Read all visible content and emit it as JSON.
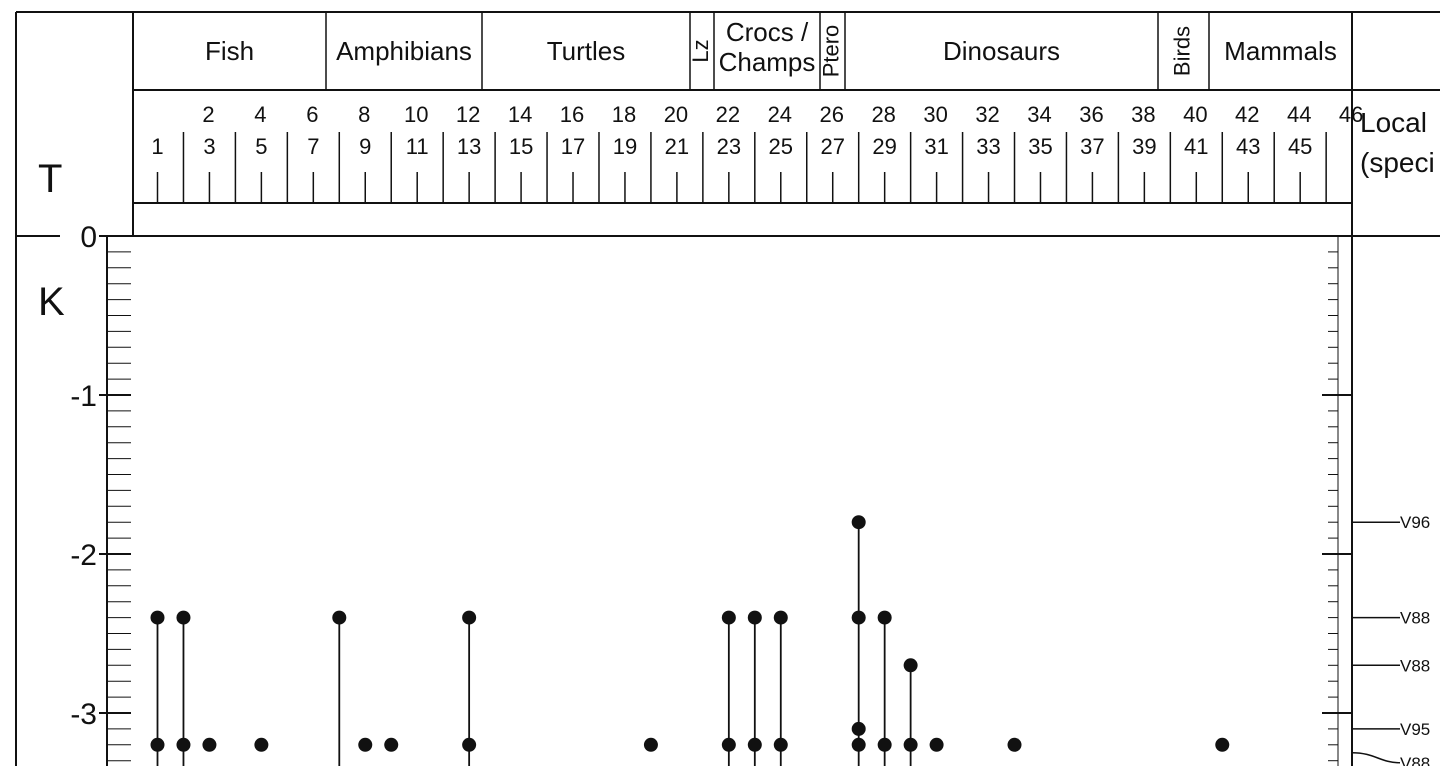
{
  "chart_data": {
    "type": "scatter",
    "boundary_labels": {
      "above": "T",
      "below": "K"
    },
    "taxon_groups": [
      {
        "name": "Fish",
        "first": 1,
        "last": 7
      },
      {
        "name": "Amphibians",
        "first": 8,
        "last": 13
      },
      {
        "name": "Turtles",
        "first": 14,
        "last": 21
      },
      {
        "name": "Lz",
        "first": 22,
        "last": 22,
        "vertical": true
      },
      {
        "name": "Crocs /\nChamps",
        "first": 23,
        "last": 26
      },
      {
        "name": "Ptero",
        "first": 27,
        "last": 27,
        "vertical": true
      },
      {
        "name": "Dinosaurs",
        "first": 28,
        "last": 39
      },
      {
        "name": "Birds",
        "first": 40,
        "last": 40,
        "vertical": true
      },
      {
        "name": "Mammals",
        "first": 41,
        "last": 46
      }
    ],
    "x_ticks_even": [
      2,
      4,
      6,
      8,
      10,
      12,
      14,
      16,
      18,
      20,
      22,
      24,
      26,
      28,
      30,
      32,
      34,
      36,
      38,
      40,
      42,
      44,
      46
    ],
    "x_ticks_odd": [
      1,
      3,
      5,
      7,
      9,
      11,
      13,
      15,
      17,
      19,
      21,
      23,
      25,
      27,
      29,
      31,
      33,
      35,
      37,
      39,
      41,
      43,
      45
    ],
    "y_ticks": [
      0,
      -1,
      -2,
      -3
    ],
    "ylim": [
      -3.35,
      0
    ],
    "side_header": "Local\n(speci",
    "localities": [
      {
        "label": "V96",
        "y": -1.8
      },
      {
        "label": "V88",
        "y": -2.4
      },
      {
        "label": "V88",
        "y": -2.7
      },
      {
        "label": "V95",
        "y": -3.1
      },
      {
        "label": "V88",
        "y": -3.25
      }
    ],
    "ranges": [
      {
        "taxon": 1,
        "top": -2.4,
        "bottom": -3.35
      },
      {
        "taxon": 2,
        "top": -2.4,
        "bottom": -3.35
      },
      {
        "taxon": 8,
        "top": -2.4,
        "bottom": -3.35
      },
      {
        "taxon": 13,
        "top": -2.4,
        "bottom": -3.35
      },
      {
        "taxon": 23,
        "top": -2.4,
        "bottom": -3.35
      },
      {
        "taxon": 24,
        "top": -2.4,
        "bottom": -3.35
      },
      {
        "taxon": 25,
        "top": -2.4,
        "bottom": -3.35
      },
      {
        "taxon": 28,
        "top": -1.8,
        "bottom": -3.35
      },
      {
        "taxon": 29,
        "top": -2.4,
        "bottom": -3.35
      },
      {
        "taxon": 30,
        "top": -2.7,
        "bottom": -3.35
      }
    ],
    "points": [
      {
        "taxon": 1,
        "y": -2.4
      },
      {
        "taxon": 1,
        "y": -3.2
      },
      {
        "taxon": 2,
        "y": -2.4
      },
      {
        "taxon": 2,
        "y": -3.2
      },
      {
        "taxon": 3,
        "y": -3.2
      },
      {
        "taxon": 5,
        "y": -3.2
      },
      {
        "taxon": 8,
        "y": -2.4
      },
      {
        "taxon": 9,
        "y": -3.2
      },
      {
        "taxon": 10,
        "y": -3.2
      },
      {
        "taxon": 13,
        "y": -2.4
      },
      {
        "taxon": 13,
        "y": -3.2
      },
      {
        "taxon": 20,
        "y": -3.2
      },
      {
        "taxon": 23,
        "y": -2.4
      },
      {
        "taxon": 23,
        "y": -3.2
      },
      {
        "taxon": 24,
        "y": -2.4
      },
      {
        "taxon": 24,
        "y": -3.2
      },
      {
        "taxon": 25,
        "y": -2.4
      },
      {
        "taxon": 25,
        "y": -3.2
      },
      {
        "taxon": 28,
        "y": -1.8
      },
      {
        "taxon": 28,
        "y": -2.4
      },
      {
        "taxon": 28,
        "y": -3.1
      },
      {
        "taxon": 28,
        "y": -3.2
      },
      {
        "taxon": 29,
        "y": -2.4
      },
      {
        "taxon": 29,
        "y": -3.2
      },
      {
        "taxon": 30,
        "y": -2.7
      },
      {
        "taxon": 30,
        "y": -3.2
      },
      {
        "taxon": 31,
        "y": -3.2
      },
      {
        "taxon": 34,
        "y": -3.2
      },
      {
        "taxon": 42,
        "y": -3.2
      }
    ]
  }
}
